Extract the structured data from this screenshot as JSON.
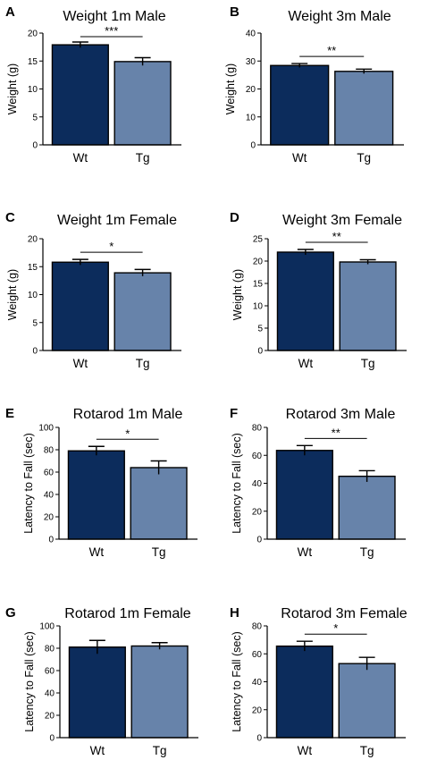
{
  "colors": {
    "wt": "#0c2c5c",
    "tg": "#6783aa",
    "axis": "#000000"
  },
  "chart_data": [
    {
      "type": "bar",
      "panel": "A",
      "title": "Weight 1m Male",
      "ylabel": "Weight (g)",
      "categories": [
        "Wt",
        "Tg"
      ],
      "values": [
        17.9,
        14.9
      ],
      "errors": [
        0.5,
        0.7
      ],
      "ylim": [
        0,
        20
      ],
      "yticks": [
        0,
        5,
        10,
        15,
        20
      ],
      "significance": "***"
    },
    {
      "type": "bar",
      "panel": "B",
      "title": "Weight 3m Male",
      "ylabel": "Weight (g)",
      "categories": [
        "Wt",
        "Tg"
      ],
      "values": [
        28.4,
        26.3
      ],
      "errors": [
        0.7,
        0.8
      ],
      "ylim": [
        0,
        40
      ],
      "yticks": [
        0,
        10,
        20,
        30,
        40
      ],
      "significance": "**"
    },
    {
      "type": "bar",
      "panel": "C",
      "title": "Weight 1m Female",
      "ylabel": "Weight (g)",
      "categories": [
        "Wt",
        "Tg"
      ],
      "values": [
        15.8,
        13.9
      ],
      "errors": [
        0.5,
        0.6
      ],
      "ylim": [
        0,
        20
      ],
      "yticks": [
        0,
        5,
        10,
        15,
        20
      ],
      "significance": "*"
    },
    {
      "type": "bar",
      "panel": "D",
      "title": "Weight 3m Female",
      "ylabel": "Weight (g)",
      "categories": [
        "Wt",
        "Tg"
      ],
      "values": [
        22.0,
        19.8
      ],
      "errors": [
        0.6,
        0.5
      ],
      "ylim": [
        0,
        25
      ],
      "yticks": [
        0,
        5,
        10,
        15,
        20,
        25
      ],
      "significance": "**"
    },
    {
      "type": "bar",
      "panel": "E",
      "title": "Rotarod 1m Male",
      "ylabel": "Latency to Fall (sec)",
      "categories": [
        "Wt",
        "Tg"
      ],
      "values": [
        79,
        64
      ],
      "errors": [
        4,
        6
      ],
      "ylim": [
        0,
        100
      ],
      "yticks": [
        0,
        20,
        40,
        60,
        80,
        100
      ],
      "significance": "*"
    },
    {
      "type": "bar",
      "panel": "F",
      "title": "Rotarod 3m Male",
      "ylabel": "Latency to Fall (sec)",
      "categories": [
        "Wt",
        "Tg"
      ],
      "values": [
        63.5,
        45
      ],
      "errors": [
        3.5,
        4
      ],
      "ylim": [
        0,
        80
      ],
      "yticks": [
        0,
        20,
        40,
        60,
        80
      ],
      "significance": "**"
    },
    {
      "type": "bar",
      "panel": "G",
      "title": "Rotarod 1m Female",
      "ylabel": "Latency to Fall (sec)",
      "categories": [
        "Wt",
        "Tg"
      ],
      "values": [
        81,
        82
      ],
      "errors": [
        6,
        3
      ],
      "ylim": [
        0,
        100
      ],
      "yticks": [
        0,
        20,
        40,
        60,
        80,
        100
      ],
      "significance": ""
    },
    {
      "type": "bar",
      "panel": "H",
      "title": "Rotarod 3m Female",
      "ylabel": "Latency to Fall (sec)",
      "categories": [
        "Wt",
        "Tg"
      ],
      "values": [
        65.5,
        53
      ],
      "errors": [
        3.5,
        4.5
      ],
      "ylim": [
        0,
        80
      ],
      "yticks": [
        0,
        20,
        40,
        60,
        80
      ],
      "significance": "*"
    }
  ]
}
